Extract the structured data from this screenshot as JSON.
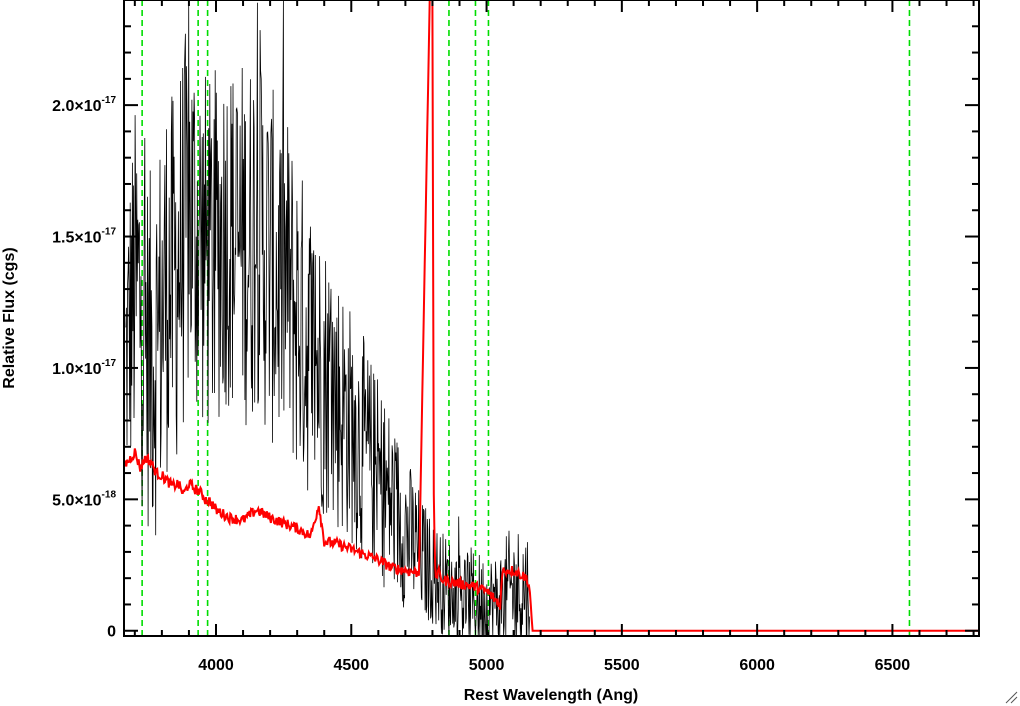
{
  "chart_data": {
    "type": "line",
    "title": "",
    "xlabel": "Rest Wavelength (Ang)",
    "ylabel": "Relative Flux (cgs)",
    "xlim": [
      3660,
      6820
    ],
    "ylim": [
      -2e-19,
      2.4e-17
    ],
    "x_ticks": [
      {
        "value": 4000,
        "label": "4000"
      },
      {
        "value": 4500,
        "label": "4500"
      },
      {
        "value": 5000,
        "label": "5000"
      },
      {
        "value": 5500,
        "label": "5500"
      },
      {
        "value": 6000,
        "label": "6000"
      },
      {
        "value": 6500,
        "label": "6500"
      }
    ],
    "y_ticks": [
      {
        "value": 0,
        "mantissa": "0",
        "exponent": ""
      },
      {
        "value": 5e-18,
        "mantissa": "5.0×10",
        "exponent": "-18"
      },
      {
        "value": 1e-17,
        "mantissa": "1.0×10",
        "exponent": "-17"
      },
      {
        "value": 1.5e-17,
        "mantissa": "1.5×10",
        "exponent": "-17"
      },
      {
        "value": 2e-17,
        "mantissa": "2.0×10",
        "exponent": "-17"
      }
    ],
    "line_markers": [
      3727,
      3934,
      3969,
      4861,
      4959,
      5007,
      6563
    ],
    "marker_color": "#00dd00",
    "series": [
      {
        "color": "#000000",
        "note": "noisy observed spectrum",
        "x": [
          3665,
          3680,
          3700,
          3720,
          3740,
          3760,
          3780,
          3800,
          3820,
          3840,
          3860,
          3880,
          3900,
          3920,
          3940,
          3960,
          3980,
          4000,
          4020,
          4040,
          4060,
          4080,
          4100,
          4120,
          4140,
          4160,
          4180,
          4200,
          4220,
          4240,
          4260,
          4280,
          4300,
          4320,
          4340,
          4360,
          4380,
          4400,
          4420,
          4440,
          4460,
          4480,
          4500,
          4520,
          4540,
          4560,
          4580,
          4600,
          4620,
          4640,
          4660,
          4680,
          4700,
          4720,
          4740,
          4760,
          4780,
          4800,
          4820,
          4840,
          4860,
          4880,
          4900,
          4920,
          4940,
          4960,
          4980,
          5000,
          5020,
          5040,
          5060,
          5080,
          5100,
          5120,
          5140,
          5160
        ],
        "y": [
          1e-17,
          1.15e-17,
          1.3e-17,
          1.25e-17,
          1.1e-17,
          1.05e-17,
          1.1e-17,
          1.2e-17,
          1.35e-17,
          1.3e-17,
          1.4e-17,
          1.5e-17,
          1.6e-17,
          1.55e-17,
          1.5e-17,
          1.45e-17,
          1.4e-17,
          1.45e-17,
          1.5e-17,
          1.55e-17,
          1.5e-17,
          1.45e-17,
          1.5e-17,
          1.45e-17,
          1.55e-17,
          1.6e-17,
          1.45e-17,
          1.4e-17,
          1.35e-17,
          1.3e-17,
          1.35e-17,
          1.25e-17,
          1.2e-17,
          1.15e-17,
          1.1e-17,
          1.05e-17,
          1e-17,
          9.8e-18,
          9.5e-18,
          9e-18,
          8.6e-18,
          8.2e-18,
          7.8e-18,
          7.4e-18,
          7e-18,
          6.6e-18,
          6.2e-18,
          5.8e-18,
          5.4e-18,
          5e-18,
          4.6e-18,
          4.2e-18,
          3.8e-18,
          3.5e-18,
          3.2e-18,
          2.8e-18,
          2.5e-18,
          2.2e-18,
          2e-18,
          1.8e-18,
          1.6e-18,
          1.5e-18,
          1.4e-18,
          1.3e-18,
          1.2e-18,
          1.1e-18,
          1e-18,
          1e-18,
          1e-18,
          1e-18,
          1.2e-18,
          1.4e-18,
          1.5e-18,
          1.6e-18,
          1.6e-18,
          1.5e-18
        ],
        "noise": [
          5e-18,
          6e-18,
          7e-18,
          7.5e-18,
          7e-18,
          7e-18,
          7.5e-18,
          7.5e-18,
          7.5e-18,
          7.5e-18,
          7.5e-18,
          7.5e-18,
          7.5e-18,
          7.5e-18,
          7.5e-18,
          7e-18,
          7e-18,
          7e-18,
          7e-18,
          7e-18,
          7e-18,
          7e-18,
          7e-18,
          7e-18,
          7.5e-18,
          7.5e-18,
          7e-18,
          7e-18,
          6.8e-18,
          6.5e-18,
          6.5e-18,
          6.5e-18,
          6.2e-18,
          6e-18,
          6e-18,
          5.8e-18,
          5.6e-18,
          5.5e-18,
          5.4e-18,
          5.2e-18,
          5e-18,
          4.8e-18,
          4.6e-18,
          4.5e-18,
          4.4e-18,
          4.2e-18,
          4e-18,
          3.9e-18,
          3.8e-18,
          3.6e-18,
          3.4e-18,
          3.2e-18,
          3e-18,
          2.8e-18,
          2.6e-18,
          2.4e-18,
          2.2e-18,
          2e-18,
          2e-18,
          2e-18,
          2e-18,
          2e-18,
          2e-18,
          2e-18,
          2e-18,
          2e-18,
          2e-18,
          2e-18,
          2e-18,
          2e-18,
          2.2e-18,
          2.4e-18,
          2.5e-18,
          2.5e-18,
          2.5e-18,
          2.5e-18
        ]
      },
      {
        "color": "#ff0000",
        "note": "smooth model spectrum",
        "x": [
          3660,
          3680,
          3700,
          3720,
          3740,
          3760,
          3780,
          3800,
          3820,
          3840,
          3860,
          3880,
          3900,
          3920,
          3940,
          3960,
          3980,
          4000,
          4050,
          4100,
          4150,
          4200,
          4250,
          4300,
          4350,
          4380,
          4400,
          4450,
          4500,
          4550,
          4600,
          4650,
          4700,
          4750,
          4790,
          4795,
          4800,
          4805,
          4810,
          4815,
          4820,
          4830,
          4850,
          4900,
          4950,
          5000,
          5030,
          5050,
          5060,
          5100,
          5150,
          5160,
          5170,
          5200,
          5500,
          6000,
          6500,
          6820
        ],
        "y": [
          6.3e-18,
          6.5e-18,
          6.8e-18,
          6.2e-18,
          6.6e-18,
          6.4e-18,
          6e-18,
          5.9e-18,
          5.7e-18,
          5.5e-18,
          5.6e-18,
          5.2e-18,
          5.6e-18,
          5.4e-18,
          5.3e-18,
          5e-18,
          4.9e-18,
          4.6e-18,
          4.3e-18,
          4.2e-18,
          4.6e-18,
          4.3e-18,
          4.1e-18,
          3.9e-18,
          3.6e-18,
          4.8e-18,
          3.4e-18,
          3.3e-18,
          3.1e-18,
          2.9e-18,
          2.7e-18,
          2.4e-18,
          2.3e-18,
          2.2e-18,
          2.4e-17,
          2.4e-17,
          2.4e-17,
          5e-18,
          2.3e-18,
          2e-18,
          2.3e-18,
          2e-18,
          1.9e-18,
          1.8e-18,
          1.7e-18,
          1.5e-18,
          1.2e-18,
          1e-18,
          2.3e-18,
          2.3e-18,
          2e-18,
          1.5e-18,
          0,
          0,
          0,
          0,
          0,
          0
        ]
      }
    ]
  }
}
